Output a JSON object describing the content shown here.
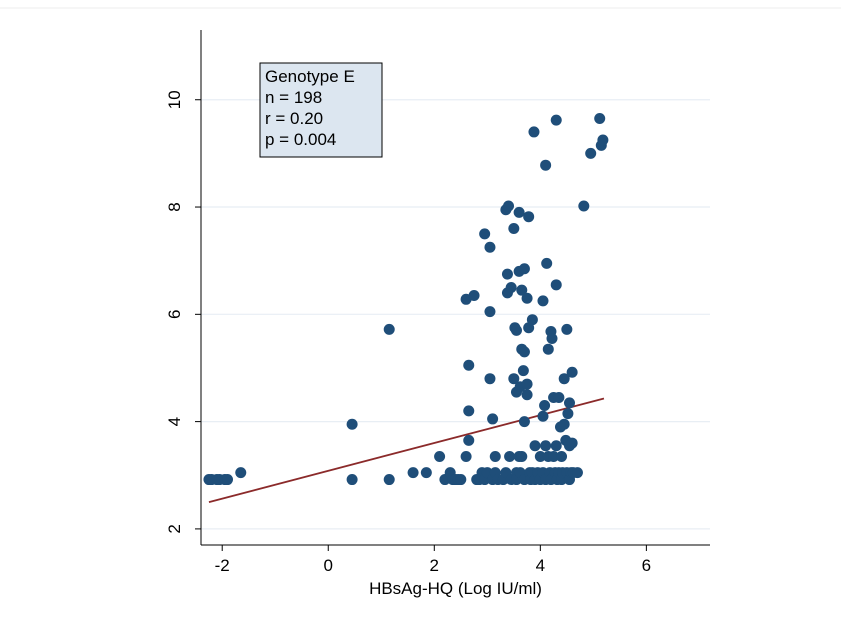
{
  "chart_data": {
    "type": "scatter",
    "title": "",
    "xlabel": "HBsAg-HQ (Log IU/ml)",
    "ylabel": "",
    "xlim": [
      -2.4,
      7.2
    ],
    "ylim": [
      1.7,
      11.3
    ],
    "xticks": [
      -2,
      0,
      2,
      4,
      6
    ],
    "yticks": [
      2,
      4,
      6,
      8,
      10
    ],
    "grid": true,
    "colors": {
      "points": "#1f4e79",
      "fit_line": "#8b2a2a",
      "annotation_bg": "#dce6f0",
      "grid": "#e8eef4"
    },
    "annotation": {
      "lines": [
        "Genotype E",
        "n = 198",
        "r = 0.20",
        "p = 0.004"
      ]
    },
    "fit_line": {
      "x": [
        -2.25,
        5.2
      ],
      "y": [
        2.5,
        4.43
      ]
    },
    "points": [
      [
        -2.25,
        2.92
      ],
      [
        -2.2,
        2.92
      ],
      [
        -2.1,
        2.92
      ],
      [
        -2.05,
        2.92
      ],
      [
        -1.95,
        2.92
      ],
      [
        -1.9,
        2.92
      ],
      [
        -1.65,
        3.05
      ],
      [
        0.45,
        3.95
      ],
      [
        0.45,
        2.92
      ],
      [
        1.15,
        5.72
      ],
      [
        1.15,
        2.92
      ],
      [
        1.6,
        3.05
      ],
      [
        1.85,
        3.05
      ],
      [
        2.1,
        3.35
      ],
      [
        2.2,
        2.92
      ],
      [
        2.3,
        3.05
      ],
      [
        2.35,
        2.92
      ],
      [
        2.4,
        2.92
      ],
      [
        2.45,
        2.92
      ],
      [
        2.5,
        2.92
      ],
      [
        2.6,
        6.28
      ],
      [
        2.6,
        3.35
      ],
      [
        2.65,
        5.05
      ],
      [
        2.65,
        4.2
      ],
      [
        2.65,
        3.65
      ],
      [
        2.75,
        6.35
      ],
      [
        2.8,
        2.92
      ],
      [
        2.85,
        2.92
      ],
      [
        2.9,
        3.05
      ],
      [
        2.95,
        2.92
      ],
      [
        2.95,
        7.5
      ],
      [
        3.0,
        3.05
      ],
      [
        3.05,
        4.8
      ],
      [
        3.05,
        7.25
      ],
      [
        3.05,
        6.05
      ],
      [
        3.1,
        2.92
      ],
      [
        3.1,
        4.05
      ],
      [
        3.15,
        3.05
      ],
      [
        3.15,
        3.35
      ],
      [
        3.2,
        2.92
      ],
      [
        3.3,
        2.92
      ],
      [
        3.35,
        3.05
      ],
      [
        3.35,
        7.95
      ],
      [
        3.38,
        6.4
      ],
      [
        3.38,
        6.75
      ],
      [
        3.4,
        8.02
      ],
      [
        3.42,
        3.35
      ],
      [
        3.45,
        2.92
      ],
      [
        3.45,
        6.5
      ],
      [
        3.5,
        7.6
      ],
      [
        3.5,
        4.8
      ],
      [
        3.52,
        5.75
      ],
      [
        3.55,
        5.7
      ],
      [
        3.55,
        4.55
      ],
      [
        3.55,
        3.05
      ],
      [
        3.55,
        2.92
      ],
      [
        3.6,
        6.8
      ],
      [
        3.6,
        7.9
      ],
      [
        3.6,
        3.35
      ],
      [
        3.62,
        4.65
      ],
      [
        3.62,
        3.05
      ],
      [
        3.65,
        6.45
      ],
      [
        3.65,
        5.35
      ],
      [
        3.65,
        3.35
      ],
      [
        3.68,
        4.95
      ],
      [
        3.7,
        6.85
      ],
      [
        3.7,
        5.3
      ],
      [
        3.7,
        4.0
      ],
      [
        3.7,
        2.92
      ],
      [
        3.75,
        6.3
      ],
      [
        3.75,
        4.7
      ],
      [
        3.75,
        4.5
      ],
      [
        3.78,
        5.75
      ],
      [
        3.78,
        7.82
      ],
      [
        3.8,
        3.05
      ],
      [
        3.82,
        2.92
      ],
      [
        3.85,
        5.9
      ],
      [
        3.85,
        3.05
      ],
      [
        3.88,
        9.4
      ],
      [
        3.9,
        3.55
      ],
      [
        3.9,
        2.92
      ],
      [
        3.95,
        3.05
      ],
      [
        4.0,
        2.92
      ],
      [
        4.0,
        3.35
      ],
      [
        4.05,
        4.1
      ],
      [
        4.05,
        3.05
      ],
      [
        4.05,
        6.25
      ],
      [
        4.08,
        4.3
      ],
      [
        4.1,
        8.78
      ],
      [
        4.1,
        3.55
      ],
      [
        4.1,
        2.92
      ],
      [
        4.12,
        6.95
      ],
      [
        4.15,
        3.35
      ],
      [
        4.15,
        5.35
      ],
      [
        4.18,
        3.05
      ],
      [
        4.2,
        5.68
      ],
      [
        4.2,
        2.92
      ],
      [
        4.22,
        5.55
      ],
      [
        4.25,
        4.45
      ],
      [
        4.25,
        3.35
      ],
      [
        4.28,
        3.05
      ],
      [
        4.3,
        9.62
      ],
      [
        4.3,
        6.55
      ],
      [
        4.3,
        3.55
      ],
      [
        4.32,
        2.92
      ],
      [
        4.35,
        4.45
      ],
      [
        4.35,
        3.05
      ],
      [
        4.38,
        3.9
      ],
      [
        4.4,
        3.35
      ],
      [
        4.4,
        2.92
      ],
      [
        4.42,
        3.05
      ],
      [
        4.45,
        4.8
      ],
      [
        4.45,
        3.95
      ],
      [
        4.48,
        3.65
      ],
      [
        4.5,
        5.72
      ],
      [
        4.5,
        3.05
      ],
      [
        4.52,
        4.15
      ],
      [
        4.55,
        4.35
      ],
      [
        4.55,
        3.55
      ],
      [
        4.55,
        2.92
      ],
      [
        4.58,
        3.05
      ],
      [
        4.6,
        4.92
      ],
      [
        4.6,
        3.6
      ],
      [
        4.62,
        3.05
      ],
      [
        4.7,
        3.05
      ],
      [
        4.82,
        8.02
      ],
      [
        4.95,
        9.0
      ],
      [
        5.12,
        9.65
      ],
      [
        5.15,
        9.15
      ],
      [
        5.18,
        9.25
      ]
    ]
  }
}
